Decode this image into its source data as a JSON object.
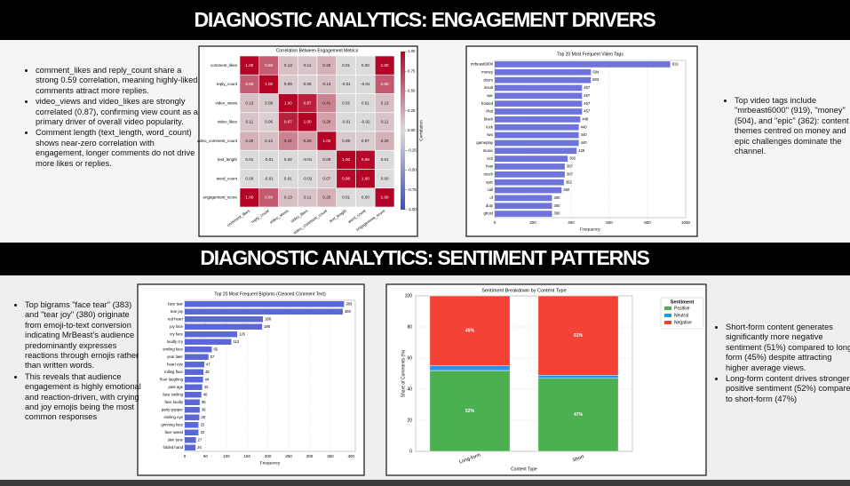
{
  "sections": [
    {
      "title": "DIAGNOSTIC ANALYTICS: ENGAGEMENT DRIVERS",
      "left_bullets": [
        "comment_likes and reply_count share a strong 0.59 correlation, meaning highly-liked comments attract more replies.",
        "video_views and video_likes are strongly correlated (0.87), confirming view count as a primary driver of overall video popularity.",
        "Comment length (text_length, word_count) shows near-zero correlation with engagement, longer comments do not drive more likes or replies."
      ],
      "right_bullets": [
        "Top video tags include \"mrbeast6000\" (919), \"money\" (504), and \"epic\" (362): content themes centred on money and epic challenges dominate the channel."
      ]
    },
    {
      "title": "DIAGNOSTIC ANALYTICS: SENTIMENT PATTERNS",
      "left_bullets": [
        "Top bigrams \"face tear\" (383) and \"tear joy\" (380) originate from emoji-to-text conversion indicating MrBeast's audience predominantly expresses reactions  through emojis rather than written words.",
        "This reveals that audience engagement is highly emotional and reaction-driven, with crying and  joy emojis being the most common responses"
      ],
      "right_bullets": [
        "Short-form content generates significantly more negative sentiment (51%) compared to long-form (45%) despite attracting higher average views.",
        "Long-form content drives stronger positive sentiment (52%) compared to short-form (47%)"
      ]
    }
  ],
  "chart_data": [
    {
      "type": "heatmap",
      "title": "Correlation Between Engagement Metrics",
      "rows": [
        "comment_likes",
        "reply_count",
        "video_views",
        "video_likes",
        "video_comment_count",
        "text_length",
        "word_count",
        "engagement_score"
      ],
      "columns": [
        "comment_likes",
        "reply_count",
        "video_views",
        "video_likes",
        "video_comment_count",
        "text_length",
        "word_count",
        "engagement_score"
      ],
      "z": [
        [
          1.0,
          0.59,
          0.13,
          0.11,
          0.2,
          0.01,
          0.0,
          1.0
        ],
        [
          0.59,
          1.0,
          0.09,
          0.06,
          0.13,
          -0.01,
          -0.01,
          0.6
        ],
        [
          0.13,
          0.09,
          1.0,
          0.87,
          0.41,
          0.02,
          0.01,
          0.13
        ],
        [
          0.11,
          0.06,
          0.87,
          1.0,
          0.28,
          -0.01,
          -0.02,
          0.11
        ],
        [
          0.2,
          0.13,
          0.41,
          0.28,
          1.0,
          0.09,
          0.07,
          0.2
        ],
        [
          0.01,
          -0.01,
          0.02,
          -0.01,
          0.09,
          1.0,
          0.98,
          0.01
        ],
        [
          0.0,
          -0.01,
          0.01,
          -0.02,
          0.07,
          0.98,
          1.0,
          0.0
        ],
        [
          1.0,
          0.6,
          0.13,
          0.11,
          0.2,
          0.01,
          0.0,
          1.0
        ]
      ],
      "value_labels": [
        [
          "1.00",
          "0.59",
          "0.13",
          "0.11",
          "0.20",
          "0.01",
          "0.00",
          "1.00"
        ],
        [
          "0.59",
          "1.00",
          "0.09",
          "0.06",
          "0.13",
          "-0.01",
          "-0.01",
          "0.60"
        ],
        [
          "0.13",
          "0.09",
          "1.00",
          "0.87",
          "0.41",
          "0.02",
          "0.01",
          "0.13"
        ],
        [
          "0.11",
          "0.06",
          "0.87",
          "1.00",
          "0.28",
          "-0.01",
          "-0.02",
          "0.11"
        ],
        [
          "0.20",
          "0.13",
          "0.41",
          "0.28",
          "1.00",
          "0.09",
          "0.07",
          "0.20"
        ],
        [
          "0.01",
          "-0.01",
          "0.02",
          "-0.01",
          "0.09",
          "1.00",
          "0.98",
          "0.01"
        ],
        [
          "0.00",
          "-0.01",
          "0.01",
          "-0.02",
          "0.07",
          "0.98",
          "1.00",
          "0.00"
        ],
        [
          "1.00",
          "0.60",
          "0.13",
          "0.11",
          "0.20",
          "0.01",
          "0.00",
          "1.00"
        ]
      ],
      "clim": [
        -1,
        1
      ],
      "colormap": [
        "#3b4cc0",
        "#dcdcdc",
        "#b40426"
      ],
      "colorbar_label": "Correlation",
      "colorbar_ticks": [
        {
          "value": 1,
          "label": "1.00"
        },
        {
          "value": 0.75,
          "label": "0.75"
        },
        {
          "value": 0.5,
          "label": "0.50"
        },
        {
          "value": 0.25,
          "label": "0.25"
        },
        {
          "value": 0,
          "label": "0.00"
        },
        {
          "value": -0.25,
          "label": "-0.25"
        },
        {
          "value": -0.5,
          "label": "-0.50"
        },
        {
          "value": -0.75,
          "label": "-0.75"
        },
        {
          "value": -1,
          "label": "-1.00"
        }
      ]
    },
    {
      "type": "hbar",
      "title": "Top 20 Most Frequent Video Tags",
      "categories": [
        "mrbeast6000",
        "money",
        "doom",
        "insult",
        "war",
        "frosted",
        "chat",
        "black",
        "lock",
        "two",
        "gameplay",
        "music",
        "rich",
        "how",
        "much",
        "epic",
        "call",
        "of",
        "duty",
        "ghost"
      ],
      "values": [
        919,
        504,
        503,
        457,
        457,
        457,
        457,
        448,
        440,
        440,
        440,
        429,
        382,
        367,
        367,
        362,
        350,
        300,
        300,
        300
      ],
      "color": "#6f74dd",
      "xlabel": "Frequency",
      "xlim": [
        0,
        1000
      ],
      "xticks": [
        0,
        200,
        400,
        600,
        800,
        1000
      ],
      "grid": true
    },
    {
      "type": "hbar",
      "title": "Top 20 Most Frequent Bigrams (Cleaned Comment Text)",
      "categories": [
        "face tear",
        "tear joy",
        "red heart",
        "joy face",
        "cry face",
        "loudly cry",
        "smiling face",
        "year later",
        "heart eye",
        "rolling floor",
        "floor laughing",
        "past age",
        "face smiling",
        "face loudly",
        "party popper",
        "smiling eye",
        "grinning face",
        "face sweat",
        "skin tone",
        "folded hand"
      ],
      "values": [
        383,
        380,
        188,
        186,
        126,
        112,
        65,
        57,
        47,
        45,
        44,
        42,
        40,
        36,
        36,
        35,
        33,
        33,
        27,
        26
      ],
      "color": "#5c67d6",
      "xlabel": "Frequency",
      "xlim": [
        0,
        410
      ],
      "xticks": [
        0,
        50,
        100,
        150,
        200,
        250,
        300,
        350,
        400
      ],
      "grid": true
    },
    {
      "type": "stacked_bar",
      "title": "Sentiment Breakdown by Content Type",
      "categories": [
        "Long-form",
        "Short"
      ],
      "series": [
        {
          "name": "Positive",
          "color": "#4caf50",
          "values": [
            52,
            47
          ],
          "value_labels": [
            "52%",
            "47%"
          ]
        },
        {
          "name": "Neutral",
          "color": "#2196f3",
          "values": [
            3,
            2
          ]
        },
        {
          "name": "Negative",
          "color": "#f44336",
          "values": [
            45,
            51
          ],
          "value_labels": [
            "45%",
            "51%"
          ]
        }
      ],
      "legend_title": "Sentiment",
      "legend": "upper right",
      "xlabel": "Content Type",
      "ylabel": "Share of Comments (%)",
      "ylim": [
        0,
        100
      ],
      "yticks": [
        0,
        20,
        40,
        60,
        80,
        100
      ],
      "grid": true
    }
  ]
}
